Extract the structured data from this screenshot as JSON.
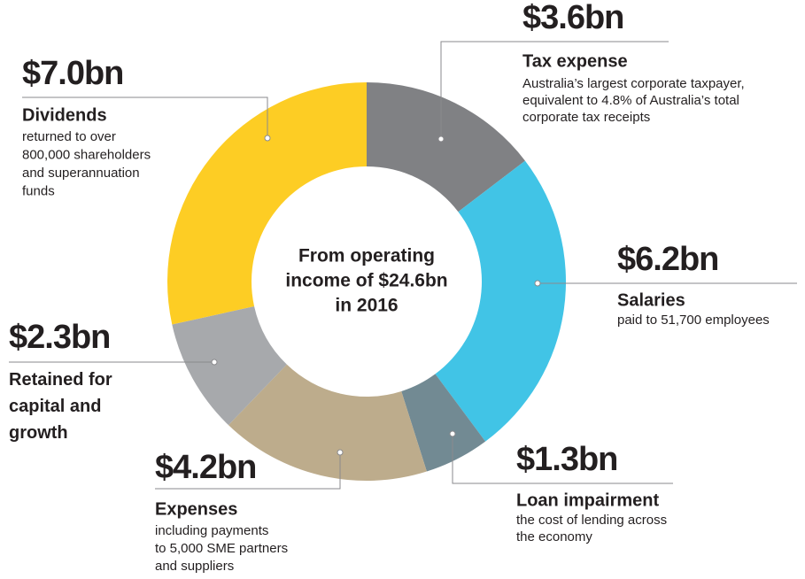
{
  "chart_data": {
    "type": "donut",
    "center_text": [
      "From operating",
      "income of $24.6bn",
      "in 2016"
    ],
    "categories": [
      "Tax expense",
      "Salaries",
      "Loan impairment",
      "Expenses",
      "Retained for capital and growth",
      "Dividends"
    ],
    "values": [
      3.6,
      6.2,
      1.3,
      4.2,
      2.3,
      7.0
    ],
    "value_labels": [
      "$3.6bn",
      "$6.2bn",
      "$1.3bn",
      "$4.2bn",
      "$2.3bn",
      "$7.0bn"
    ],
    "colors": [
      "#808184",
      "#41c4e6",
      "#728a93",
      "#bdac8c",
      "#a7a9ac",
      "#fdcd24"
    ],
    "descriptions": [
      [
        "Australia’s largest corporate taxpayer,",
        "equivalent to 4.8% of Australia’s total",
        "corporate tax receipts"
      ],
      [
        "paid to 51,700 employees"
      ],
      [
        "the cost of lending across",
        "the economy"
      ],
      [
        "including payments",
        "to 5,000 SME partners",
        "and suppliers"
      ],
      [],
      [
        "returned to over",
        "800,000 shareholders",
        "and superannuation",
        "funds"
      ]
    ]
  }
}
